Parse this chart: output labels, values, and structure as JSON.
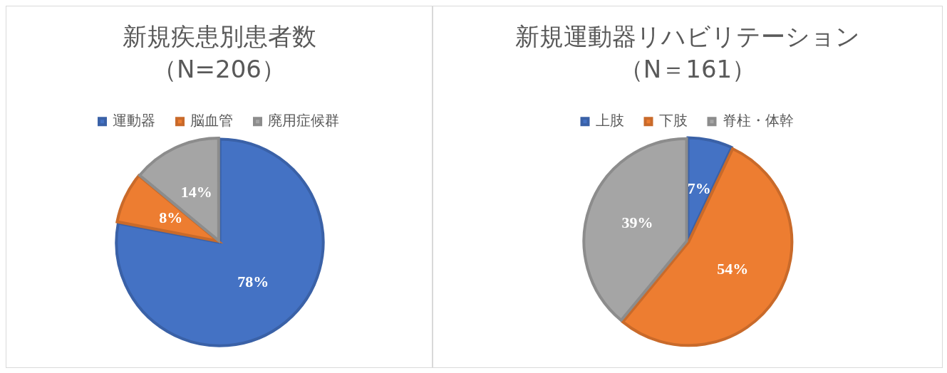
{
  "chart_data": [
    {
      "type": "pie",
      "title": "新規疾患別患者数",
      "subtitle": "（N=206）",
      "categories": [
        "運動器",
        "脳血管",
        "廃用症候群"
      ],
      "values": [
        78,
        8,
        14
      ],
      "colors": [
        "#4472c4",
        "#ed7d31",
        "#a5a5a5"
      ],
      "value_labels": [
        "78%",
        "8%",
        "14%"
      ],
      "legend": "top"
    },
    {
      "type": "pie",
      "title": "新規運動器リハビリテーション",
      "subtitle": "（N＝161）",
      "categories": [
        "上肢",
        "下肢",
        "脊柱・体幹"
      ],
      "values": [
        7,
        54,
        39
      ],
      "colors": [
        "#4472c4",
        "#ed7d31",
        "#a5a5a5"
      ],
      "value_labels": [
        "7%",
        "54%",
        "39%"
      ],
      "legend": "top"
    }
  ]
}
